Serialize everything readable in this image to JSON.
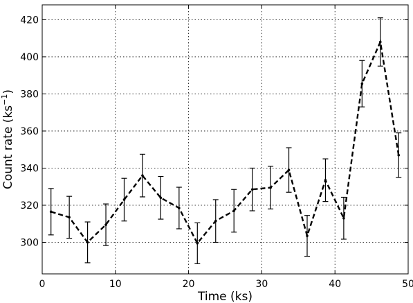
{
  "chart_data": {
    "type": "line",
    "title": "",
    "xlabel": "Time (ks)",
    "ylabel_main": "Count rate (ks",
    "ylabel_sup": "−1",
    "ylabel_close": ")",
    "xlim": [
      0,
      50
    ],
    "ylim": [
      283,
      428
    ],
    "xticks": [
      0,
      10,
      20,
      30,
      40,
      50
    ],
    "yticks": [
      300,
      320,
      340,
      360,
      380,
      400,
      420
    ],
    "grid": true,
    "line_style": "dashed",
    "line_color": "#000000",
    "series": [
      {
        "x": [
          1.2,
          3.7,
          6.2,
          8.7,
          11.2,
          13.7,
          16.2,
          18.7,
          21.2,
          23.7,
          26.2,
          28.7,
          31.2,
          33.7,
          36.2,
          38.7,
          41.2,
          43.7,
          46.2,
          48.7
        ],
        "y": [
          316.5,
          313.5,
          300,
          309.5,
          323,
          336,
          324,
          318.5,
          299.5,
          311.5,
          317,
          328.5,
          329.5,
          339,
          303.5,
          333.5,
          313,
          385.5,
          408,
          347
        ],
        "err": [
          12.5,
          11.3,
          11,
          11.2,
          11.5,
          11.5,
          11.5,
          11.2,
          11,
          11.5,
          11.5,
          11.5,
          11.5,
          12,
          11,
          11.5,
          11.3,
          12.5,
          13,
          12
        ]
      }
    ]
  }
}
